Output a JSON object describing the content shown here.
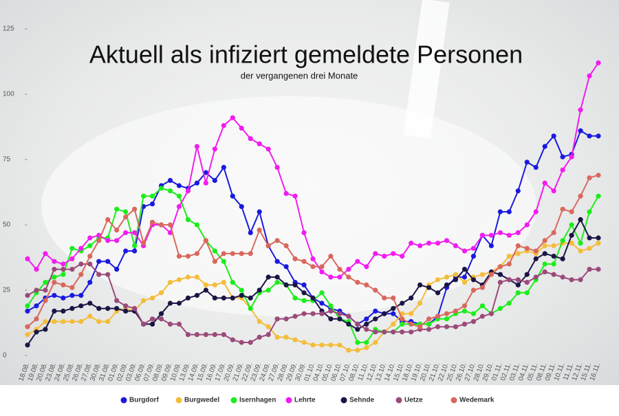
{
  "chart_data": {
    "type": "line",
    "title": "Aktuell als infiziert gemeldete Personen",
    "subtitle": "der vergangenen drei Monate",
    "categories": [
      "18.08.",
      "19.08.",
      "20.08.",
      "23.08.",
      "24.08.",
      "25.08.",
      "26.08.",
      "27.08.",
      "30.08.",
      "31.08.",
      "01.09.",
      "02.09.",
      "03.09.",
      "06.09.",
      "07.09.",
      "08.09.",
      "09.09.",
      "10.09.",
      "13.09.",
      "14.09.",
      "15.09.",
      "16.09.",
      "17.09.",
      "20.09.",
      "21.09.",
      "22.09.",
      "23.09.",
      "24.09.",
      "27.09.",
      "28.09.",
      "29.09.",
      "30.09.",
      "01.10.",
      "04.10.",
      "05.10.",
      "06.10.",
      "07.10.",
      "08.10.",
      "11.10.",
      "12.10.",
      "13.10.",
      "14.10.",
      "15.10.",
      "18.10.",
      "19.10.",
      "20.10.",
      "21.10.",
      "22.10.",
      "25.10.",
      "26.10.",
      "27.10.",
      "28.10.",
      "29.10.",
      "01.11.",
      "02.11.",
      "03.11.",
      "04.11.",
      "05.11.",
      "08.11.",
      "09.11.",
      "10.11.",
      "11.11.",
      "12.11.",
      "15.11.",
      "16.11."
    ],
    "series": [
      {
        "name": "Burgdorf",
        "color": "#1a1adf",
        "values": [
          17,
          19,
          22,
          23,
          22,
          23,
          23,
          28,
          36,
          36,
          33,
          40,
          40,
          57,
          58,
          65,
          67,
          65,
          64,
          66,
          70,
          67,
          72,
          61,
          57,
          47,
          55,
          42,
          36,
          34,
          28,
          27,
          22,
          20,
          18,
          17,
          15,
          12,
          14,
          17,
          16,
          16,
          13,
          13,
          12,
          12,
          15,
          26,
          30,
          30,
          38,
          46,
          42,
          55,
          55,
          63,
          74,
          72,
          80,
          84,
          76,
          77,
          86,
          84,
          84
        ]
      },
      {
        "name": "Burgwedel",
        "color": "#f4bd3a",
        "values": [
          8,
          10,
          13,
          13,
          13,
          13,
          13,
          15,
          13,
          13,
          17,
          18,
          17,
          21,
          22,
          24,
          28,
          29,
          30,
          30,
          27,
          27,
          28,
          22,
          22,
          18,
          13,
          11,
          7,
          7,
          6,
          5,
          4,
          4,
          4,
          4,
          2,
          2,
          3,
          5,
          9,
          12,
          16,
          16,
          20,
          27,
          29,
          30,
          31,
          28,
          30,
          31,
          32,
          34,
          38,
          39,
          40,
          39,
          42,
          42,
          43,
          43,
          40,
          41,
          43
        ]
      },
      {
        "name": "Isernhagen",
        "color": "#1aee1a",
        "values": [
          19,
          24,
          28,
          30,
          31,
          41,
          40,
          42,
          45,
          45,
          56,
          55,
          42,
          61,
          61,
          64,
          63,
          61,
          52,
          50,
          44,
          40,
          36,
          28,
          25,
          18,
          24,
          25,
          28,
          27,
          22,
          21,
          21,
          24,
          19,
          14,
          13,
          5,
          5,
          10,
          9,
          9,
          12,
          12,
          12,
          12,
          14,
          14,
          16,
          17,
          16,
          19,
          16,
          18,
          20,
          24,
          24,
          29,
          35,
          35,
          44,
          50,
          43,
          55,
          61
        ]
      },
      {
        "name": "Lehrte",
        "color": "#f21cf0",
        "values": [
          37,
          33,
          39,
          36,
          35,
          37,
          41,
          45,
          46,
          44,
          44,
          47,
          47,
          42,
          50,
          50,
          47,
          57,
          63,
          80,
          66,
          79,
          88,
          91,
          87,
          83,
          81,
          79,
          72,
          62,
          61,
          47,
          37,
          32,
          30,
          30,
          33,
          36,
          34,
          39,
          38,
          39,
          38,
          43,
          42,
          43,
          43,
          44,
          42,
          40,
          41,
          46,
          46,
          47,
          46,
          47,
          50,
          55,
          66,
          63,
          71,
          76,
          94,
          107,
          112
        ]
      },
      {
        "name": "Sehnde",
        "color": "#1a1545",
        "values": [
          4,
          9,
          10,
          17,
          17,
          18,
          19,
          20,
          18,
          18,
          18,
          17,
          17,
          12,
          12,
          16,
          20,
          20,
          22,
          23,
          25,
          22,
          22,
          22,
          23,
          22,
          25,
          30,
          30,
          27,
          27,
          24,
          22,
          17,
          14,
          14,
          12,
          10,
          12,
          14,
          16,
          18,
          20,
          22,
          27,
          26,
          24,
          27,
          29,
          33,
          29,
          27,
          32,
          31,
          29,
          27,
          31,
          37,
          39,
          38,
          37,
          46,
          52,
          45,
          45
        ]
      },
      {
        "name": "Uetze",
        "color": "#9b4a7a",
        "values": [
          23,
          25,
          25,
          33,
          33,
          33,
          35,
          35,
          31,
          31,
          21,
          19,
          18,
          12,
          14,
          14,
          12,
          12,
          8,
          8,
          8,
          8,
          8,
          6,
          5,
          5,
          7,
          8,
          14,
          14,
          15,
          16,
          16,
          16,
          17,
          16,
          15,
          12,
          10,
          9,
          9,
          9,
          9,
          9,
          10,
          10,
          11,
          11,
          11,
          12,
          13,
          15,
          16,
          28,
          29,
          29,
          28,
          30,
          32,
          31,
          30,
          29,
          29,
          33,
          33
        ]
      },
      {
        "name": "Wedemark",
        "color": "#d9685c",
        "values": [
          11,
          14,
          21,
          28,
          27,
          26,
          31,
          38,
          44,
          52,
          48,
          53,
          56,
          43,
          51,
          50,
          50,
          38,
          38,
          39,
          44,
          36,
          39,
          39,
          39,
          39,
          48,
          42,
          44,
          42,
          37,
          36,
          34,
          34,
          38,
          33,
          30,
          28,
          27,
          25,
          22,
          22,
          14,
          12,
          11,
          14,
          15,
          16,
          17,
          19,
          25,
          26,
          31,
          34,
          35,
          42,
          41,
          40,
          44,
          47,
          56,
          55,
          61,
          68,
          69
        ]
      }
    ],
    "ylim": [
      0,
      125
    ],
    "yticks": [
      0,
      25,
      50,
      75,
      100,
      125
    ],
    "legend": "bottom"
  }
}
